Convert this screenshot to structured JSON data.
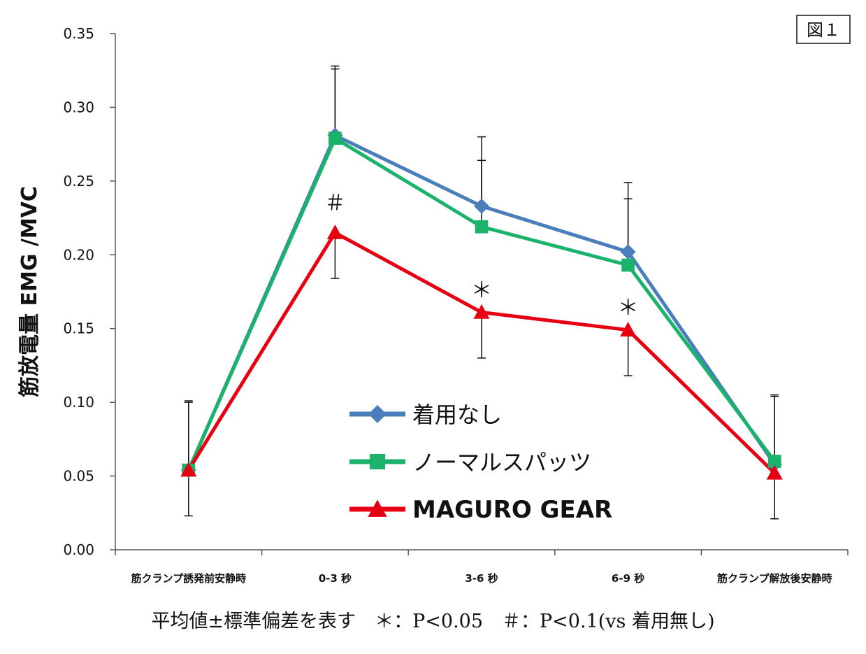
{
  "figure_label": "図１",
  "footnote": "平均値±標準偏差を表す　＊：P<0.05　＃：P<0.1(vs 着用無し)",
  "chart_data": {
    "type": "line",
    "categories": [
      "筋クランプ誘発前安静時",
      "0-3 秒",
      "3-6 秒",
      "6-9 秒",
      "筋クランプ解放後安静時"
    ],
    "ylabel": "筋放電量 EMG /MVC",
    "xlabel": "",
    "ylim": [
      0,
      0.35
    ],
    "yticks": [
      "0.00",
      "0.05",
      "0.10",
      "0.15",
      "0.20",
      "0.25",
      "0.30",
      "0.35"
    ],
    "grid": false,
    "legend_position": "inside-lower-center",
    "series": [
      {
        "name": "着用なし",
        "color": "#4a7ebb",
        "marker": "diamond",
        "values": [
          0.054,
          0.281,
          0.233,
          0.202,
          0.058
        ],
        "error_upper": [
          0.1,
          0.328,
          0.28,
          0.249,
          0.105
        ]
      },
      {
        "name": "ノーマルスパッツ",
        "color": "#1bb26b",
        "marker": "square",
        "values": [
          0.054,
          0.279,
          0.219,
          0.193,
          0.06
        ],
        "error_upper": [
          0.101,
          0.326,
          0.264,
          0.238,
          0.104
        ]
      },
      {
        "name": "MAGURO GEAR",
        "color": "#e60012",
        "marker": "triangle",
        "values": [
          0.054,
          0.215,
          0.161,
          0.149,
          0.052
        ],
        "error_lower": [
          0.023,
          0.184,
          0.13,
          0.118,
          0.021
        ]
      }
    ],
    "annotations": [
      {
        "text": "＃",
        "category": 1,
        "y": 0.235
      },
      {
        "text": "＊",
        "category": 2,
        "y": 0.176
      },
      {
        "text": "＊",
        "category": 3,
        "y": 0.164
      }
    ]
  }
}
